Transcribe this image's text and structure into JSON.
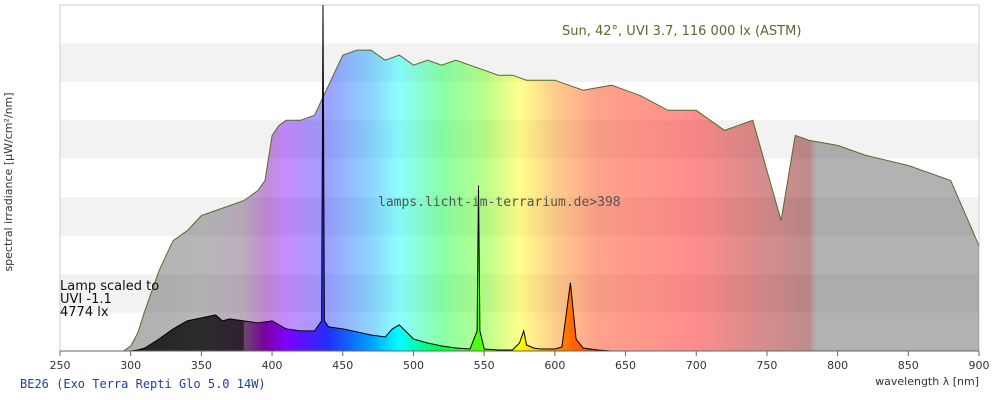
{
  "chart_data": {
    "type": "area",
    "xlabel": "wavelength λ [nm]",
    "ylabel": "spectral irradiance [µW/cm²/nm]",
    "xlim": [
      250,
      900
    ],
    "x_ticks": [
      250,
      300,
      350,
      400,
      450,
      500,
      550,
      600,
      650,
      700,
      750,
      800,
      850,
      900
    ],
    "grid": "horizontal bands",
    "sun_label": "Sun, 42°, UVI 3.7, 116 000 lx (ASTM)",
    "watermark": "lamps.licht-im-terrarium.de>398",
    "lamp_label": [
      "Lamp scaled to",
      "UVI -1.1",
      "4774 lx"
    ],
    "footer": "BE26 (Exo Terra Repti Glo 5.0 14W)",
    "series": [
      {
        "name": "Sun, 42°, UVI 3.7, 116 000 lx (ASTM)",
        "color": "#556b2f",
        "x": [
          295,
          300,
          305,
          310,
          315,
          320,
          325,
          330,
          340,
          350,
          360,
          370,
          380,
          390,
          395,
          400,
          405,
          410,
          420,
          430,
          440,
          450,
          460,
          470,
          480,
          490,
          500,
          510,
          520,
          530,
          540,
          550,
          560,
          570,
          580,
          590,
          600,
          620,
          640,
          660,
          680,
          700,
          720,
          740,
          760,
          770,
          780,
          800,
          820,
          850,
          880,
          900
        ],
        "y": [
          0,
          5,
          18,
          40,
          60,
          80,
          95,
          110,
          120,
          135,
          140,
          145,
          150,
          160,
          170,
          215,
          225,
          230,
          230,
          235,
          265,
          295,
          300,
          300,
          290,
          295,
          285,
          290,
          285,
          290,
          285,
          280,
          275,
          275,
          270,
          270,
          270,
          260,
          265,
          255,
          240,
          240,
          220,
          230,
          130,
          215,
          210,
          205,
          195,
          185,
          170,
          105
        ]
      },
      {
        "name": "Lamp",
        "x": [
          250,
          300,
          305,
          310,
          320,
          330,
          340,
          350,
          360,
          365,
          370,
          380,
          390,
          400,
          405,
          410,
          420,
          430,
          435,
          436,
          437,
          440,
          450,
          460,
          470,
          480,
          485,
          490,
          500,
          510,
          520,
          530,
          540,
          545,
          546,
          547,
          550,
          560,
          570,
          575,
          578,
          580,
          585,
          590,
          600,
          605,
          611,
          615,
          620,
          625,
          630,
          640,
          650,
          700,
          750,
          800,
          850,
          900
        ],
        "y": [
          0,
          0,
          1,
          3,
          12,
          22,
          30,
          33,
          36,
          30,
          32,
          30,
          28,
          30,
          26,
          22,
          20,
          20,
          30,
          345,
          30,
          24,
          22,
          19,
          16,
          14,
          22,
          26,
          12,
          8,
          5,
          3,
          2,
          20,
          165,
          20,
          2,
          1,
          1,
          8,
          20,
          6,
          3,
          2,
          2,
          4,
          68,
          12,
          3,
          2,
          1,
          0,
          0,
          0,
          0,
          0,
          0,
          0
        ]
      }
    ]
  }
}
